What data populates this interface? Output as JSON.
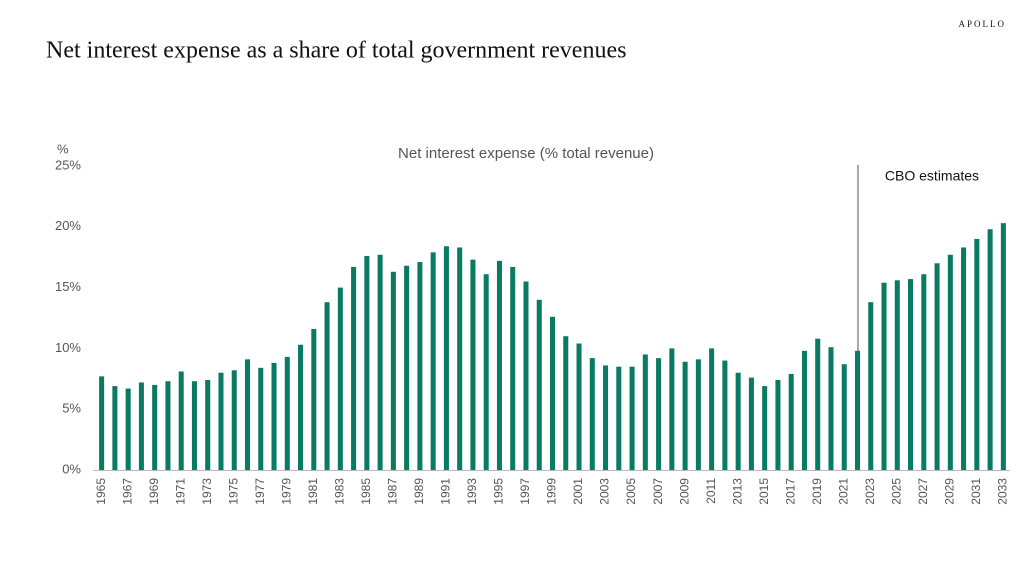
{
  "brand": "APOLLO",
  "chart_data": {
    "type": "bar",
    "title": "Net interest expense as a share of total government revenues",
    "subtitle": "Net interest expense (% total revenue)",
    "y_axis_label": "%",
    "annotation": "CBO estimates",
    "color": "#0b7a63",
    "categories": [
      "1965",
      null,
      "1967",
      null,
      "1969",
      null,
      "1971",
      null,
      "1973",
      null,
      "1975",
      null,
      "1977",
      null,
      "1979",
      null,
      "1981",
      null,
      "1983",
      null,
      "1985",
      null,
      "1987",
      null,
      "1989",
      null,
      "1991",
      null,
      "1993",
      null,
      "1995",
      null,
      "1997",
      null,
      "1999",
      null,
      "2001",
      null,
      "2003",
      null,
      "2005",
      null,
      "2007",
      null,
      "2009",
      null,
      "2011",
      null,
      "2013",
      null,
      "2015",
      null,
      "2017",
      null,
      "2019",
      null,
      "2021",
      null,
      "2023",
      null,
      "2025",
      null,
      "2027",
      null,
      "2029",
      null,
      "2031",
      null,
      "2033"
    ],
    "values": [
      7.7,
      6.9,
      6.7,
      7.2,
      7.0,
      7.3,
      8.1,
      7.3,
      7.4,
      8.0,
      8.2,
      9.1,
      8.4,
      8.8,
      9.3,
      10.3,
      11.6,
      13.8,
      15.0,
      16.7,
      17.6,
      17.7,
      16.3,
      16.8,
      17.1,
      17.9,
      18.4,
      18.3,
      17.3,
      16.1,
      17.2,
      16.7,
      15.5,
      14.0,
      12.6,
      11.0,
      10.4,
      9.2,
      8.6,
      8.5,
      8.5,
      9.5,
      9.2,
      10.0,
      8.9,
      9.1,
      10.0,
      9.0,
      8.0,
      7.6,
      6.9,
      7.4,
      7.9,
      9.8,
      10.8,
      10.1,
      8.7,
      9.8,
      13.8,
      15.4,
      15.6,
      15.7,
      16.1,
      17.0,
      17.7,
      18.3,
      19.0,
      19.8,
      20.3
    ],
    "ylim": [
      0,
      25
    ],
    "yticks": [
      {
        "value": 0,
        "label": "0%"
      },
      {
        "value": 5,
        "label": "5%"
      },
      {
        "value": 10,
        "label": "10%"
      },
      {
        "value": 15,
        "label": "15%"
      },
      {
        "value": 20,
        "label": "20%"
      },
      {
        "value": 25,
        "label": "25%"
      }
    ],
    "grid": false
  }
}
